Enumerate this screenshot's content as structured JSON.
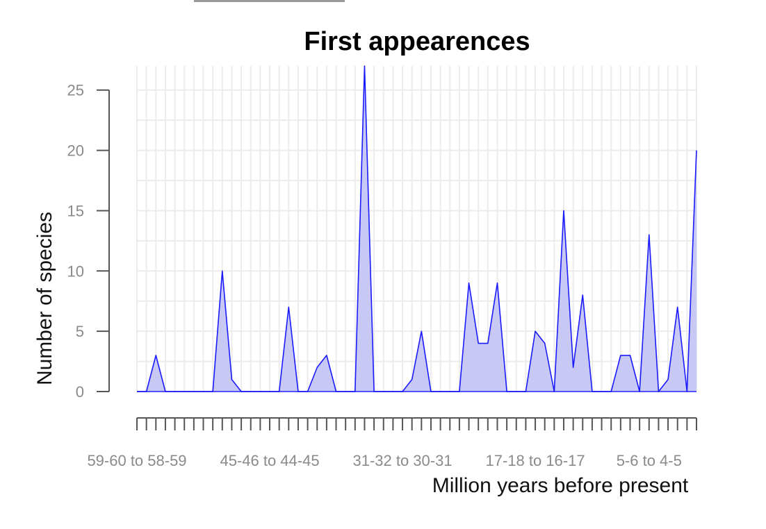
{
  "chart_data": {
    "type": "area",
    "title": "First appearences",
    "xlabel": "Million years before present",
    "ylabel": "Number of species",
    "ylim": [
      0,
      27
    ],
    "yticks": [
      0,
      5,
      10,
      15,
      20,
      25
    ],
    "xtick_labels": [
      "59-60 to 58-59",
      "45-46 to 44-45",
      "31-32 to 30-31",
      "17-18 to 16-17",
      "5-6 to 4-5"
    ],
    "xtick_label_indices": [
      0,
      14,
      28,
      42,
      54
    ],
    "grid": true,
    "colors": {
      "line": "#1a1aff",
      "fill": "#c8c8f4",
      "axis": "#555555",
      "grid": "#ececec"
    },
    "series": [
      {
        "values": [
          0,
          0,
          3,
          0,
          0,
          0,
          0,
          0,
          0,
          10,
          1,
          0,
          0,
          0,
          0,
          0,
          7,
          0,
          0,
          2,
          3,
          0,
          0,
          0,
          27,
          0,
          0,
          0,
          0,
          1,
          5,
          0,
          0,
          0,
          0,
          9,
          4,
          4,
          9,
          0,
          0,
          0,
          5,
          4,
          0,
          15,
          2,
          8,
          0,
          0,
          0,
          3,
          3,
          0,
          13,
          0,
          1,
          7,
          0,
          20
        ]
      }
    ]
  }
}
